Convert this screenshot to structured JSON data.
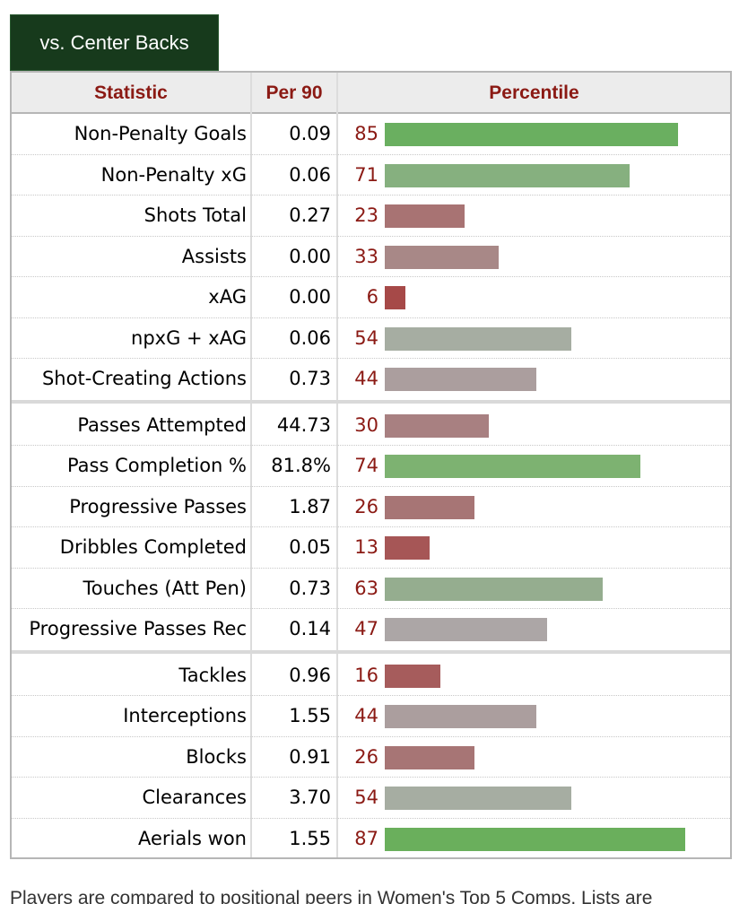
{
  "tab": {
    "label": "vs. Center Backs"
  },
  "table": {
    "headers": {
      "statistic": "Statistic",
      "per90": "Per 90",
      "percentile": "Percentile"
    },
    "groups": [
      [
        {
          "label": "Non-Penalty Goals",
          "per90": "0.09",
          "percentile": "85",
          "bar_fraction": 0.85,
          "bar_color": "#6aaf60"
        },
        {
          "label": "Non-Penalty xG",
          "per90": "0.06",
          "percentile": "71",
          "bar_fraction": 0.71,
          "bar_color": "#86b07f"
        },
        {
          "label": "Shots Total",
          "per90": "0.27",
          "percentile": "23",
          "bar_fraction": 0.23,
          "bar_color": "#a87373"
        },
        {
          "label": "Assists",
          "per90": "0.00",
          "percentile": "33",
          "bar_fraction": 0.33,
          "bar_color": "#a88887"
        },
        {
          "label": "xAG",
          "per90": "0.00",
          "percentile": "6",
          "bar_fraction": 0.06,
          "bar_color": "#a64948"
        },
        {
          "label": "npxG + xAG",
          "per90": "0.06",
          "percentile": "54",
          "bar_fraction": 0.54,
          "bar_color": "#a6ada2"
        },
        {
          "label": "Shot-Creating Actions",
          "per90": "0.73",
          "percentile": "44",
          "bar_fraction": 0.44,
          "bar_color": "#ab9e9e"
        }
      ],
      [
        {
          "label": "Passes Attempted",
          "per90": "44.73",
          "percentile": "30",
          "bar_fraction": 0.3,
          "bar_color": "#a88081"
        },
        {
          "label": "Pass Completion %",
          "per90": "81.8%",
          "percentile": "74",
          "bar_fraction": 0.74,
          "bar_color": "#7db271"
        },
        {
          "label": "Progressive Passes",
          "per90": "1.87",
          "percentile": "26",
          "bar_fraction": 0.26,
          "bar_color": "#a77575"
        },
        {
          "label": "Dribbles Completed",
          "per90": "0.05",
          "percentile": "13",
          "bar_fraction": 0.13,
          "bar_color": "#a65656"
        },
        {
          "label": "Touches (Att Pen)",
          "per90": "0.73",
          "percentile": "63",
          "bar_fraction": 0.63,
          "bar_color": "#95ad8f"
        },
        {
          "label": "Progressive Passes Rec",
          "per90": "0.14",
          "percentile": "47",
          "bar_fraction": 0.47,
          "bar_color": "#aca6a6"
        }
      ],
      [
        {
          "label": "Tackles",
          "per90": "0.96",
          "percentile": "16",
          "bar_fraction": 0.16,
          "bar_color": "#a65c5c"
        },
        {
          "label": "Interceptions",
          "per90": "1.55",
          "percentile": "44",
          "bar_fraction": 0.44,
          "bar_color": "#ab9e9e"
        },
        {
          "label": "Blocks",
          "per90": "0.91",
          "percentile": "26",
          "bar_fraction": 0.26,
          "bar_color": "#a77575"
        },
        {
          "label": "Clearances",
          "per90": "3.70",
          "percentile": "54",
          "bar_fraction": 0.54,
          "bar_color": "#a6ada2"
        },
        {
          "label": "Aerials won",
          "per90": "1.55",
          "percentile": "87",
          "bar_fraction": 0.87,
          "bar_color": "#6aaf5c"
        }
      ]
    ]
  },
  "footer": {
    "text": "Players are compared to positional peers in Women's Top 5 Comps. Lists are"
  }
}
